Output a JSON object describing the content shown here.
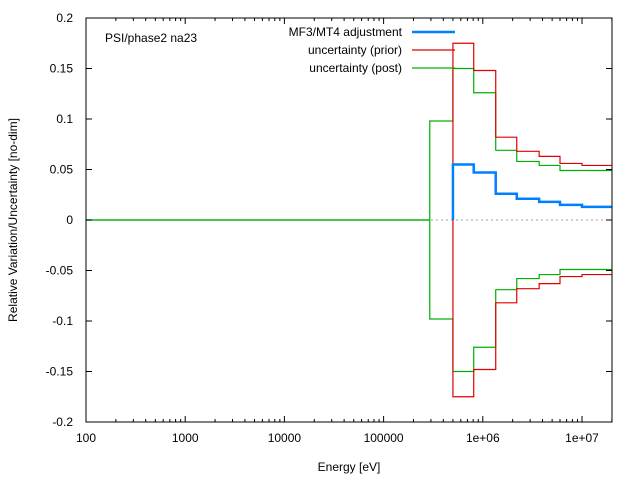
{
  "chart_data": {
    "type": "line",
    "title": "",
    "annotation": "PSI/phase2 na23",
    "xlabel": "Energy [eV]",
    "ylabel": "Relative Variation/Uncertainty [no-dim]",
    "xscale": "log",
    "xlim": [
      100,
      20000000
    ],
    "ylim": [
      -0.2,
      0.2
    ],
    "grid": false,
    "legend_position": "top-right",
    "xticks": [
      {
        "value": 100,
        "label": "100"
      },
      {
        "value": 1000,
        "label": "1000"
      },
      {
        "value": 10000,
        "label": "10000"
      },
      {
        "value": 100000,
        "label": "100000"
      },
      {
        "value": 1000000,
        "label": "1e+06"
      },
      {
        "value": 10000000,
        "label": "1e+07"
      }
    ],
    "yticks": [
      {
        "value": 0.2,
        "label": "0.2"
      },
      {
        "value": 0.15,
        "label": "0.15"
      },
      {
        "value": 0.1,
        "label": "0.1"
      },
      {
        "value": 0.05,
        "label": "0.05"
      },
      {
        "value": 0,
        "label": "0"
      },
      {
        "value": -0.05,
        "label": "-0.05"
      },
      {
        "value": -0.1,
        "label": "-0.1"
      },
      {
        "value": -0.15,
        "label": "-0.15"
      },
      {
        "value": -0.2,
        "label": "-0.2"
      }
    ],
    "series": [
      {
        "name": "MF3/MT4 adjustment",
        "color": "#0080ff",
        "style": "step",
        "symmetric": false,
        "edges": [
          500000,
          810000,
          1350000,
          2200000,
          3700000,
          6000000,
          10000000,
          20000000
        ],
        "values": [
          0.055,
          0.047,
          0.026,
          0.021,
          0.018,
          0.015,
          0.013
        ]
      },
      {
        "name": "uncertainty (prior)",
        "color": "#e00000",
        "style": "step",
        "symmetric": true,
        "edges": [
          500000,
          810000,
          1350000,
          2200000,
          3700000,
          6000000,
          10000000,
          20000000
        ],
        "values": [
          0.175,
          0.148,
          0.082,
          0.068,
          0.063,
          0.056,
          0.054
        ]
      },
      {
        "name": "uncertainty (post)",
        "color": "#00b000",
        "style": "step",
        "symmetric": true,
        "edges": [
          100,
          292000,
          500000,
          810000,
          1350000,
          2200000,
          3700000,
          6000000,
          20000000
        ],
        "values": [
          0,
          0.098,
          0.15,
          0.126,
          0.069,
          0.058,
          0.054,
          0.049
        ]
      }
    ],
    "zero_line": {
      "color": "#a0a0a0",
      "style": "dotted"
    }
  }
}
